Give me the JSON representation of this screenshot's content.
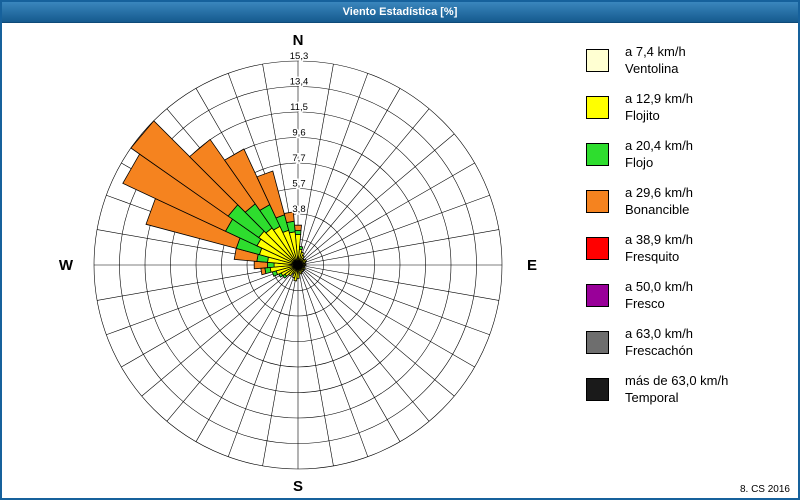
{
  "window": {
    "title": "Viento Estadística [%]",
    "footer": "8. CS 2016"
  },
  "chart_data": {
    "type": "wind-rose-stacked-polar-bar",
    "title": "Viento Estadística [%]",
    "units": "%",
    "num_sectors": 36,
    "num_rings": 8,
    "r_max": 15.3,
    "ring_labels": [
      "3,8",
      "5,7",
      "7,7",
      "9,6",
      "11,5",
      "13,4",
      "15,3"
    ],
    "ring_values": [
      3.8,
      5.7,
      7.7,
      9.6,
      11.5,
      13.4,
      15.3
    ],
    "compass": {
      "n": "N",
      "e": "E",
      "s": "S",
      "w": "W"
    },
    "grid": true,
    "legend_position": "right",
    "angles": [
      0,
      10,
      20,
      30,
      40,
      50,
      60,
      70,
      80,
      90,
      100,
      110,
      120,
      130,
      140,
      150,
      160,
      170,
      180,
      190,
      200,
      210,
      220,
      230,
      240,
      250,
      260,
      270,
      280,
      290,
      300,
      310,
      320,
      330,
      340,
      350
    ],
    "series": [
      {
        "name": "Ventolina",
        "color": "#FFFFD2",
        "values": [
          0.3,
          0.2,
          0.2,
          0.2,
          0.1,
          0.1,
          0.1,
          0.1,
          0.1,
          0.1,
          0.1,
          0.1,
          0.1,
          0.1,
          0.1,
          0.1,
          0.1,
          0.1,
          0.2,
          0.2,
          0.2,
          0.1,
          0.2,
          0.2,
          0.2,
          0.2,
          0.3,
          0.3,
          0.3,
          0.4,
          0.4,
          0.4,
          0.4,
          0.4,
          0.3,
          0.3
        ]
      },
      {
        "name": "Flojito",
        "color": "#FFFF00",
        "values": [
          2.0,
          1.0,
          0.8,
          0.6,
          0.5,
          0.5,
          0.6,
          0.5,
          0.4,
          0.5,
          0.4,
          0.4,
          0.5,
          0.4,
          0.5,
          0.5,
          0.6,
          0.5,
          0.8,
          1.0,
          0.8,
          0.6,
          0.8,
          1.0,
          1.2,
          1.5,
          1.8,
          1.5,
          2.0,
          2.6,
          3.0,
          3.2,
          3.0,
          2.8,
          2.4,
          2.2
        ]
      },
      {
        "name": "Flojo",
        "color": "#2EDD2E",
        "values": [
          0.3,
          0.2,
          0,
          0,
          0,
          0,
          0,
          0,
          0,
          0,
          0,
          0,
          0,
          0,
          0,
          0,
          0,
          0,
          0,
          0,
          0,
          0,
          0,
          0.2,
          0.2,
          0.3,
          0.4,
          0.5,
          0.8,
          1.8,
          2.6,
          2.8,
          2.2,
          1.8,
          1.2,
          0.8
        ]
      },
      {
        "name": "Bonancible",
        "color": "#F5831F",
        "values": [
          0.4,
          0,
          0,
          0,
          0,
          0,
          0,
          0,
          0,
          0,
          0,
          0,
          0,
          0,
          0,
          0,
          0,
          0,
          0,
          0,
          0,
          0,
          0,
          0,
          0,
          0,
          0.3,
          1.0,
          1.7,
          7.0,
          8.5,
          8.9,
          5.9,
          4.6,
          3.4,
          0.7
        ]
      },
      {
        "name": "Fresquito",
        "color": "#FF0000",
        "values": [
          0,
          0,
          0,
          0,
          0,
          0,
          0,
          0,
          0,
          0,
          0,
          0,
          0,
          0,
          0,
          0,
          0,
          0,
          0,
          0,
          0,
          0,
          0,
          0,
          0,
          0,
          0,
          0,
          0,
          0,
          0,
          0,
          0,
          0,
          0,
          0
        ]
      },
      {
        "name": "Fresco",
        "color": "#990099",
        "values": [
          0,
          0,
          0,
          0,
          0,
          0,
          0,
          0,
          0,
          0,
          0,
          0,
          0,
          0,
          0,
          0,
          0,
          0,
          0,
          0,
          0,
          0,
          0,
          0,
          0,
          0,
          0,
          0,
          0,
          0,
          0,
          0,
          0,
          0,
          0,
          0
        ]
      },
      {
        "name": "Frescachón",
        "color": "#6E6E6E",
        "values": [
          0,
          0,
          0,
          0,
          0,
          0,
          0,
          0,
          0,
          0,
          0,
          0,
          0,
          0,
          0,
          0,
          0,
          0,
          0,
          0,
          0,
          0,
          0,
          0,
          0,
          0,
          0,
          0,
          0,
          0,
          0,
          0,
          0,
          0,
          0,
          0
        ]
      },
      {
        "name": "Temporal",
        "color": "#1A1A1A",
        "values": [
          0,
          0,
          0,
          0,
          0,
          0,
          0,
          0,
          0,
          0,
          0,
          0,
          0,
          0,
          0,
          0,
          0,
          0,
          0,
          0,
          0,
          0,
          0,
          0,
          0,
          0,
          0,
          0,
          0,
          0,
          0,
          0,
          0,
          0,
          0,
          0
        ]
      }
    ]
  },
  "legend": {
    "items": [
      {
        "color": "#FFFFD2",
        "speed": "a 7,4 km/h",
        "name": "Ventolina"
      },
      {
        "color": "#FFFF00",
        "speed": "a 12,9 km/h",
        "name": "Flojito"
      },
      {
        "color": "#2EDD2E",
        "speed": "a 20,4 km/h",
        "name": "Flojo"
      },
      {
        "color": "#F5831F",
        "speed": "a 29,6 km/h",
        "name": "Bonancible"
      },
      {
        "color": "#FF0000",
        "speed": "a 38,9 km/h",
        "name": "Fresquito"
      },
      {
        "color": "#990099",
        "speed": "a 50,0 km/h",
        "name": "Fresco"
      },
      {
        "color": "#6E6E6E",
        "speed": "a 63,0 km/h",
        "name": "Frescachón"
      },
      {
        "color": "#1A1A1A",
        "speed": "más de 63,0 km/h",
        "name": "Temporal"
      }
    ]
  }
}
